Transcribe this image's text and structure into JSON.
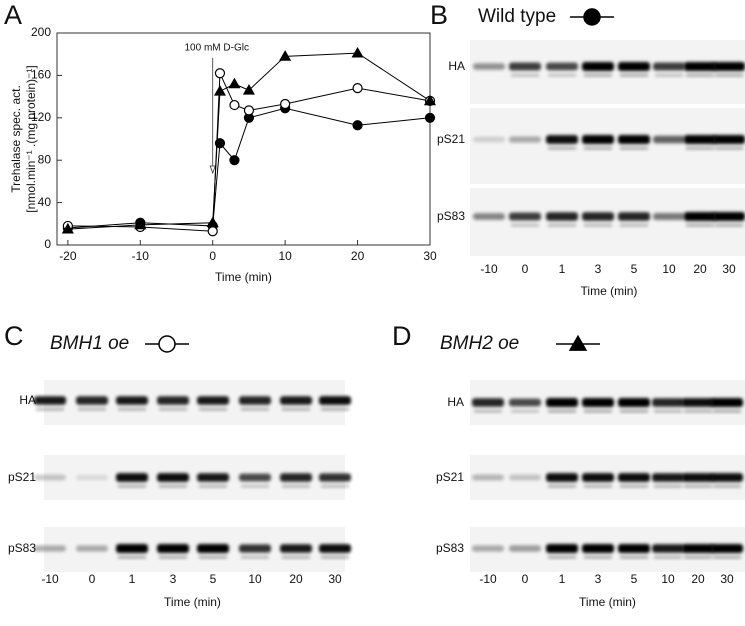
{
  "panel_labels": [
    "A",
    "B",
    "C",
    "D"
  ],
  "chart_data": {
    "type": "line",
    "y_label": [
      "Trehalase spec. act.",
      "[nmol.min⁻¹ .(mg protein)⁻¹]"
    ],
    "x_label": "Time (min)",
    "annotation": "100 mM D-Glc",
    "x": [
      -20,
      -10,
      0,
      1,
      3,
      5,
      10,
      20,
      30
    ],
    "xlim": [
      -21.5,
      30
    ],
    "xticks": [
      -20,
      -10,
      0,
      10,
      20,
      30
    ],
    "ylim": [
      0,
      200
    ],
    "yticks": [
      0,
      40,
      80,
      120,
      160,
      200
    ],
    "series": [
      {
        "marker": "filled-circle",
        "color": "#000000",
        "values": [
          16,
          21,
          18,
          96,
          80,
          120,
          129,
          113,
          120
        ]
      },
      {
        "marker": "open-circle",
        "color": "#000000",
        "values": [
          18,
          17,
          13,
          162,
          132,
          127,
          133,
          148,
          136
        ]
      },
      {
        "marker": "triangle",
        "color": "#000000",
        "values": [
          15,
          19,
          21,
          145,
          152,
          146,
          178,
          181,
          136
        ]
      }
    ]
  },
  "blots": [
    {
      "title": "Wild type",
      "marker": "filled-circle",
      "rows": [
        "HA",
        "pS21",
        "pS83"
      ],
      "lanes": [
        -10,
        0,
        1,
        3,
        5,
        10,
        20,
        30
      ],
      "x_label": "Time (min)"
    },
    {
      "title": "BMH1 oe",
      "marker": "open-circle",
      "rows": [
        "HA",
        "pS21",
        "pS83"
      ],
      "lanes": [
        -10,
        0,
        1,
        3,
        5,
        10,
        20,
        30
      ],
      "x_label": "Time (min)"
    },
    {
      "title": "BMH2 oe",
      "marker": "triangle",
      "rows": [
        "HA",
        "pS21",
        "pS83"
      ],
      "lanes": [
        -10,
        0,
        1,
        3,
        5,
        10,
        20,
        30
      ],
      "x_label": "Time (min)"
    }
  ]
}
